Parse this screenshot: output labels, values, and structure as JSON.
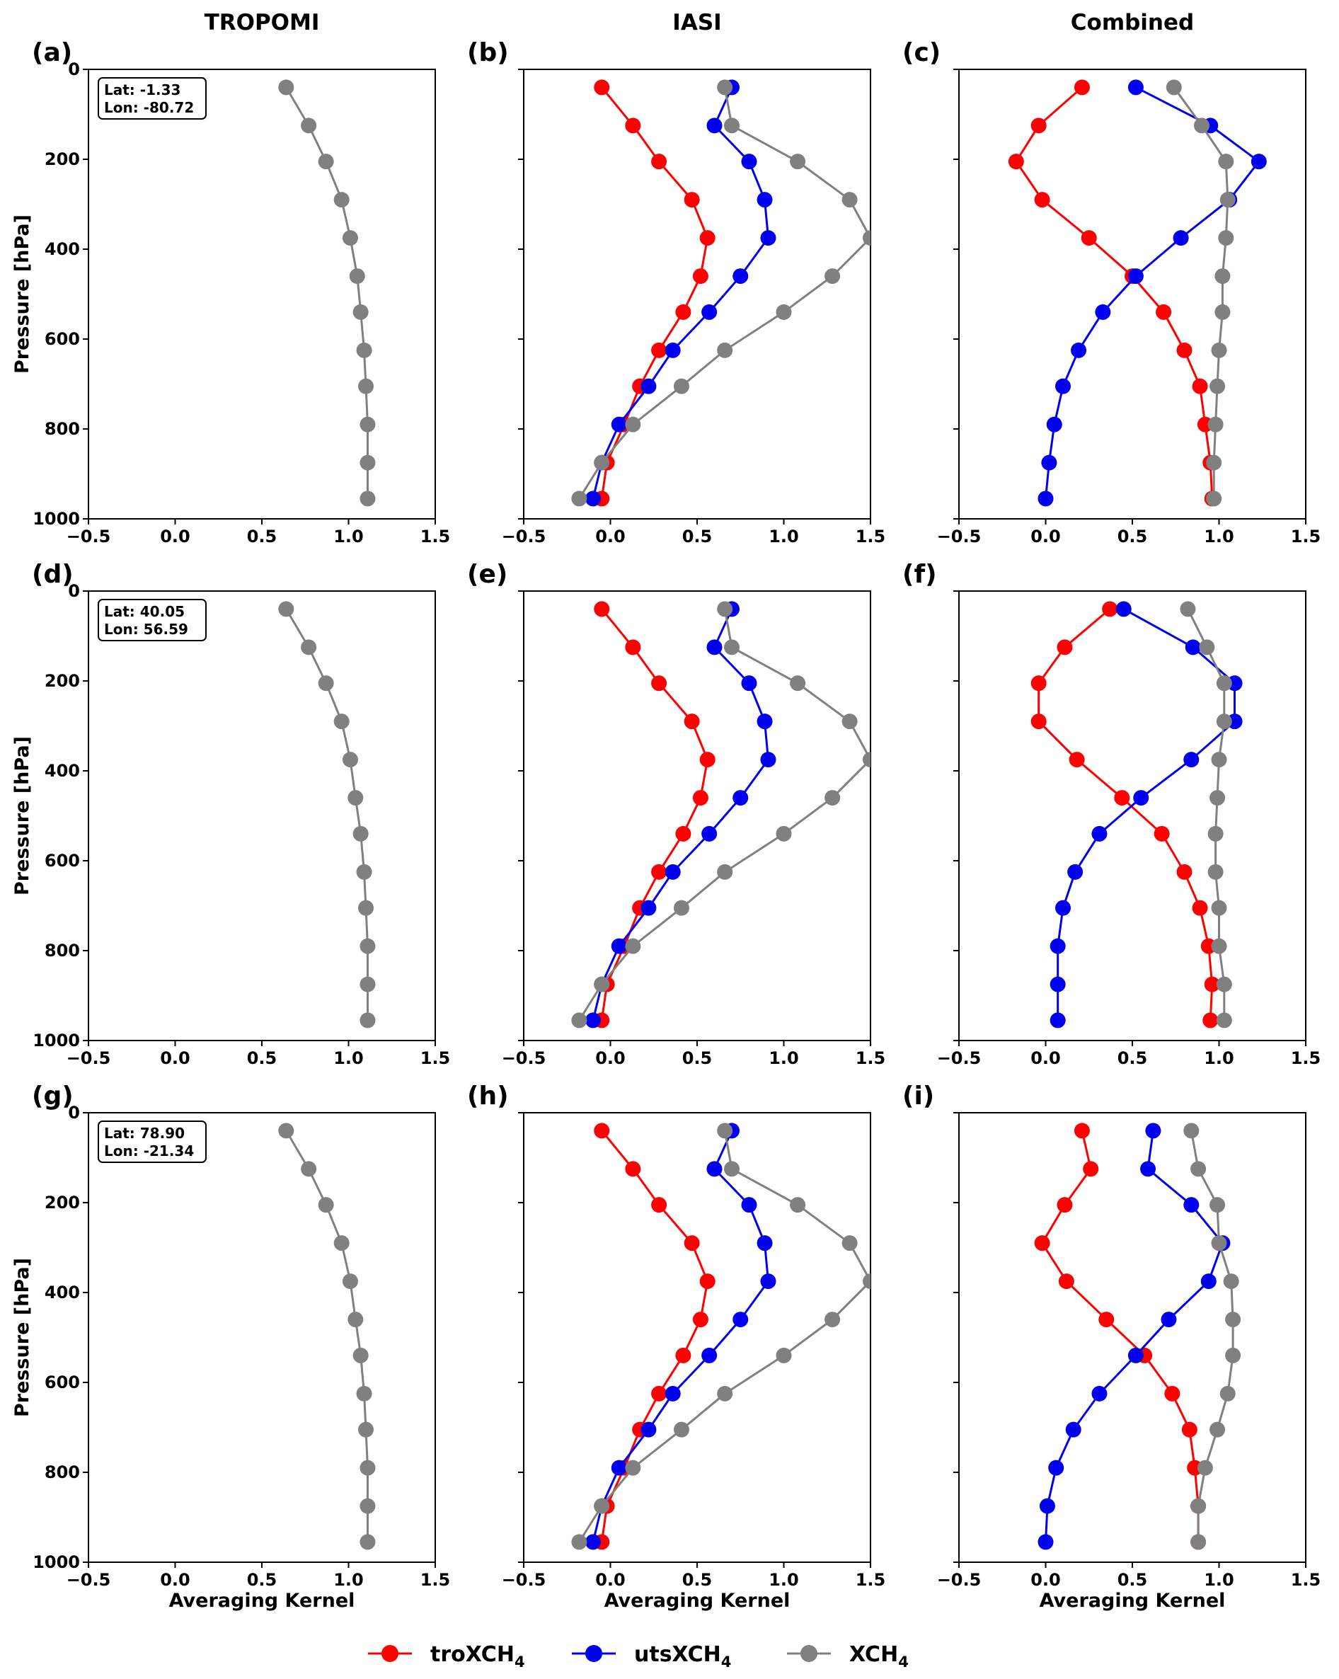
{
  "colors": {
    "troXCH4": "#ff0000",
    "utsXCH4": "#0000ee",
    "XCH4": "#808080"
  },
  "column_titles": [
    "TROPOMI",
    "IASI",
    "Combined"
  ],
  "legend": [
    {
      "key": "troXCH4",
      "label": "troXCH",
      "sub": "4",
      "color": "#ff0000"
    },
    {
      "key": "utsXCH4",
      "label": "utsXCH",
      "sub": "4",
      "color": "#0000ee"
    },
    {
      "key": "XCH4",
      "label": "XCH",
      "sub": "4",
      "color": "#808080"
    }
  ],
  "chart_data": [
    {
      "type": "line",
      "panel": "(a)",
      "column": "TROPOMI",
      "info": [
        "Lat: -1.33",
        "Lon: -80.72"
      ],
      "ylabel": "Pressure [hPa]",
      "xlabel": "",
      "xlim": [
        -0.5,
        1.5
      ],
      "ylim": [
        1000,
        0
      ],
      "y_inverted": true,
      "xticks": [
        "−0.5",
        "0.0",
        "0.5",
        "1.0",
        "1.5"
      ],
      "yticks": [
        "0",
        "200",
        "400",
        "600",
        "800",
        "1000"
      ],
      "pressure": [
        40,
        125,
        205,
        290,
        375,
        460,
        540,
        625,
        705,
        790,
        875,
        955
      ],
      "series": [
        {
          "name": "XCH4",
          "x": [
            0.64,
            0.77,
            0.87,
            0.96,
            1.01,
            1.05,
            1.07,
            1.09,
            1.1,
            1.11,
            1.11,
            1.11
          ]
        }
      ]
    },
    {
      "type": "line",
      "panel": "(b)",
      "column": "IASI",
      "ylabel": "",
      "xlabel": "",
      "xlim": [
        -0.5,
        1.5
      ],
      "ylim": [
        1000,
        0
      ],
      "y_inverted": true,
      "xticks": [
        "−0.5",
        "0.0",
        "0.5",
        "1.0",
        "1.5"
      ],
      "yticks": [],
      "pressure": [
        40,
        125,
        205,
        290,
        375,
        460,
        540,
        625,
        705,
        790,
        875,
        955
      ],
      "series": [
        {
          "name": "troXCH4",
          "x": [
            -0.05,
            0.13,
            0.28,
            0.47,
            0.56,
            0.52,
            0.42,
            0.28,
            0.17,
            0.08,
            -0.02,
            -0.05
          ]
        },
        {
          "name": "utsXCH4",
          "x": [
            0.7,
            0.6,
            0.8,
            0.89,
            0.91,
            0.75,
            0.57,
            0.36,
            0.22,
            0.05,
            -0.05,
            -0.1
          ]
        },
        {
          "name": "XCH4",
          "x": [
            0.66,
            0.7,
            1.08,
            1.38,
            1.5,
            1.28,
            1.0,
            0.66,
            0.41,
            0.13,
            -0.05,
            -0.18
          ]
        }
      ]
    },
    {
      "type": "line",
      "panel": "(c)",
      "column": "Combined",
      "ylabel": "",
      "xlabel": "",
      "xlim": [
        -0.5,
        1.5
      ],
      "ylim": [
        1000,
        0
      ],
      "y_inverted": true,
      "xticks": [
        "−0.5",
        "0.0",
        "0.5",
        "1.0",
        "1.5"
      ],
      "yticks": [],
      "pressure": [
        40,
        125,
        205,
        290,
        375,
        460,
        540,
        625,
        705,
        790,
        875,
        955
      ],
      "series": [
        {
          "name": "troXCH4",
          "x": [
            0.21,
            -0.04,
            -0.17,
            -0.02,
            0.25,
            0.5,
            0.68,
            0.8,
            0.89,
            0.92,
            0.95,
            0.96
          ]
        },
        {
          "name": "utsXCH4",
          "x": [
            0.52,
            0.95,
            1.23,
            1.06,
            0.78,
            0.52,
            0.33,
            0.19,
            0.1,
            0.05,
            0.02,
            0.0
          ]
        },
        {
          "name": "XCH4",
          "x": [
            0.74,
            0.9,
            1.04,
            1.05,
            1.04,
            1.02,
            1.02,
            1.0,
            0.99,
            0.98,
            0.97,
            0.97
          ]
        }
      ]
    },
    {
      "type": "line",
      "panel": "(d)",
      "column": "TROPOMI",
      "info": [
        "Lat: 40.05",
        "Lon: 56.59"
      ],
      "ylabel": "Pressure [hPa]",
      "xlabel": "",
      "xlim": [
        -0.5,
        1.5
      ],
      "ylim": [
        1000,
        0
      ],
      "y_inverted": true,
      "xticks": [
        "−0.5",
        "0.0",
        "0.5",
        "1.0",
        "1.5"
      ],
      "yticks": [
        "0",
        "200",
        "400",
        "600",
        "800",
        "1000"
      ],
      "pressure": [
        40,
        125,
        205,
        290,
        375,
        460,
        540,
        625,
        705,
        790,
        875,
        955
      ],
      "series": [
        {
          "name": "XCH4",
          "x": [
            0.64,
            0.77,
            0.87,
            0.96,
            1.01,
            1.04,
            1.07,
            1.09,
            1.1,
            1.11,
            1.11,
            1.11
          ]
        }
      ]
    },
    {
      "type": "line",
      "panel": "(e)",
      "column": "IASI",
      "ylabel": "",
      "xlabel": "",
      "xlim": [
        -0.5,
        1.5
      ],
      "ylim": [
        1000,
        0
      ],
      "y_inverted": true,
      "xticks": [
        "−0.5",
        "0.0",
        "0.5",
        "1.0",
        "1.5"
      ],
      "yticks": [],
      "pressure": [
        40,
        125,
        205,
        290,
        375,
        460,
        540,
        625,
        705,
        790,
        875,
        955
      ],
      "series": [
        {
          "name": "troXCH4",
          "x": [
            -0.05,
            0.13,
            0.28,
            0.47,
            0.56,
            0.52,
            0.42,
            0.28,
            0.17,
            0.08,
            -0.02,
            -0.05
          ]
        },
        {
          "name": "utsXCH4",
          "x": [
            0.7,
            0.6,
            0.8,
            0.89,
            0.91,
            0.75,
            0.57,
            0.36,
            0.22,
            0.05,
            -0.05,
            -0.1
          ]
        },
        {
          "name": "XCH4",
          "x": [
            0.66,
            0.7,
            1.08,
            1.38,
            1.5,
            1.28,
            1.0,
            0.66,
            0.41,
            0.13,
            -0.05,
            -0.18
          ]
        }
      ]
    },
    {
      "type": "line",
      "panel": "(f)",
      "column": "Combined",
      "ylabel": "",
      "xlabel": "",
      "xlim": [
        -0.5,
        1.5
      ],
      "ylim": [
        1000,
        0
      ],
      "y_inverted": true,
      "xticks": [
        "−0.5",
        "0.0",
        "0.5",
        "1.0",
        "1.5"
      ],
      "yticks": [],
      "pressure": [
        40,
        125,
        205,
        290,
        375,
        460,
        540,
        625,
        705,
        790,
        875,
        955
      ],
      "series": [
        {
          "name": "troXCH4",
          "x": [
            0.37,
            0.11,
            -0.04,
            -0.04,
            0.18,
            0.44,
            0.67,
            0.8,
            0.89,
            0.94,
            0.96,
            0.95
          ]
        },
        {
          "name": "utsXCH4",
          "x": [
            0.45,
            0.85,
            1.09,
            1.09,
            0.84,
            0.55,
            0.31,
            0.17,
            0.1,
            0.07,
            0.07,
            0.07
          ]
        },
        {
          "name": "XCH4",
          "x": [
            0.82,
            0.93,
            1.03,
            1.03,
            1.0,
            0.99,
            0.98,
            0.98,
            1.0,
            1.0,
            1.03,
            1.03
          ]
        }
      ]
    },
    {
      "type": "line",
      "panel": "(g)",
      "column": "TROPOMI",
      "info": [
        "Lat: 78.90",
        "Lon: -21.34"
      ],
      "ylabel": "Pressure [hPa]",
      "xlabel": "Averaging Kernel",
      "xlim": [
        -0.5,
        1.5
      ],
      "ylim": [
        1000,
        0
      ],
      "y_inverted": true,
      "xticks": [
        "−0.5",
        "0.0",
        "0.5",
        "1.0",
        "1.5"
      ],
      "yticks": [
        "0",
        "200",
        "400",
        "600",
        "800",
        "1000"
      ],
      "pressure": [
        40,
        125,
        205,
        290,
        375,
        460,
        540,
        625,
        705,
        790,
        875,
        955
      ],
      "series": [
        {
          "name": "XCH4",
          "x": [
            0.64,
            0.77,
            0.87,
            0.96,
            1.01,
            1.04,
            1.07,
            1.09,
            1.1,
            1.11,
            1.11,
            1.11
          ]
        }
      ]
    },
    {
      "type": "line",
      "panel": "(h)",
      "column": "IASI",
      "ylabel": "",
      "xlabel": "Averaging Kernel",
      "xlim": [
        -0.5,
        1.5
      ],
      "ylim": [
        1000,
        0
      ],
      "y_inverted": true,
      "xticks": [
        "−0.5",
        "0.0",
        "0.5",
        "1.0",
        "1.5"
      ],
      "yticks": [],
      "pressure": [
        40,
        125,
        205,
        290,
        375,
        460,
        540,
        625,
        705,
        790,
        875,
        955
      ],
      "series": [
        {
          "name": "troXCH4",
          "x": [
            -0.05,
            0.13,
            0.28,
            0.47,
            0.56,
            0.52,
            0.42,
            0.28,
            0.17,
            0.08,
            -0.02,
            -0.05
          ]
        },
        {
          "name": "utsXCH4",
          "x": [
            0.7,
            0.6,
            0.8,
            0.89,
            0.91,
            0.75,
            0.57,
            0.36,
            0.22,
            0.05,
            -0.05,
            -0.1
          ]
        },
        {
          "name": "XCH4",
          "x": [
            0.66,
            0.7,
            1.08,
            1.38,
            1.5,
            1.28,
            1.0,
            0.66,
            0.41,
            0.13,
            -0.05,
            -0.18
          ]
        }
      ]
    },
    {
      "type": "line",
      "panel": "(i)",
      "column": "Combined",
      "ylabel": "",
      "xlabel": "Averaging Kernel",
      "xlim": [
        -0.5,
        1.5
      ],
      "ylim": [
        1000,
        0
      ],
      "y_inverted": true,
      "xticks": [
        "−0.5",
        "0.0",
        "0.5",
        "1.0",
        "1.5"
      ],
      "yticks": [],
      "pressure": [
        40,
        125,
        205,
        290,
        375,
        460,
        540,
        625,
        705,
        790,
        875,
        955
      ],
      "series": [
        {
          "name": "troXCH4",
          "x": [
            0.21,
            0.26,
            0.11,
            -0.02,
            0.12,
            0.35,
            0.57,
            0.73,
            0.83,
            0.86,
            0.88,
            0.88
          ]
        },
        {
          "name": "utsXCH4",
          "x": [
            0.62,
            0.59,
            0.84,
            1.02,
            0.94,
            0.71,
            0.52,
            0.31,
            0.16,
            0.06,
            0.01,
            0.0
          ]
        },
        {
          "name": "XCH4",
          "x": [
            0.84,
            0.88,
            0.99,
            1.0,
            1.07,
            1.08,
            1.08,
            1.05,
            0.99,
            0.92,
            0.88,
            0.88
          ]
        }
      ]
    }
  ]
}
